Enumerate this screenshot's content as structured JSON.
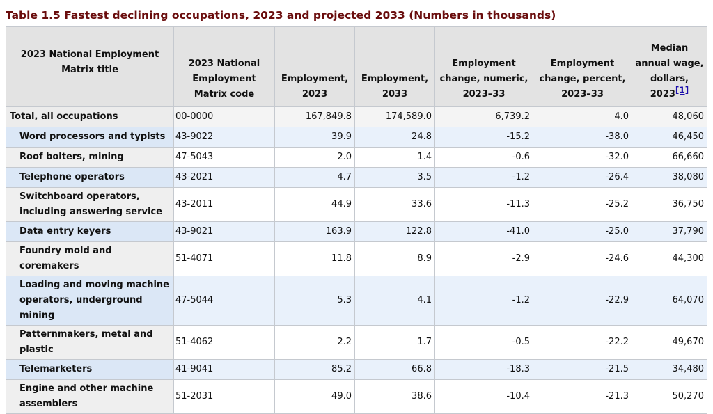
{
  "caption": "Table 1.5 Fastest declining occupations, 2023 and projected 2033 (Numbers in thousands)",
  "headers": {
    "title": "2023 National Employment Matrix title",
    "code": "2023 National Employment Matrix code",
    "emp2023": "Employment, 2023",
    "emp2033": "Employment, 2033",
    "change_numeric": "Employment change, numeric, 2023–33",
    "change_percent": "Employment change, percent, 2023–33",
    "wage": "Median annual wage, dollars, 2023",
    "wage_footnote": "[1]"
  },
  "rows": [
    {
      "title": "Total, all occupations",
      "code": "00-0000",
      "emp2023": "167,849.8",
      "emp2033": "174,589.0",
      "change_numeric": "6,739.2",
      "change_percent": "4.0",
      "wage": "48,060"
    },
    {
      "title": "Word processors and typists",
      "code": "43-9022",
      "emp2023": "39.9",
      "emp2033": "24.8",
      "change_numeric": "-15.2",
      "change_percent": "-38.0",
      "wage": "46,450"
    },
    {
      "title": "Roof bolters, mining",
      "code": "47-5043",
      "emp2023": "2.0",
      "emp2033": "1.4",
      "change_numeric": "-0.6",
      "change_percent": "-32.0",
      "wage": "66,660"
    },
    {
      "title": "Telephone operators",
      "code": "43-2021",
      "emp2023": "4.7",
      "emp2033": "3.5",
      "change_numeric": "-1.2",
      "change_percent": "-26.4",
      "wage": "38,080"
    },
    {
      "title": "Switchboard operators, including answering service",
      "code": "43-2011",
      "emp2023": "44.9",
      "emp2033": "33.6",
      "change_numeric": "-11.3",
      "change_percent": "-25.2",
      "wage": "36,750"
    },
    {
      "title": "Data entry keyers",
      "code": "43-9021",
      "emp2023": "163.9",
      "emp2033": "122.8",
      "change_numeric": "-41.0",
      "change_percent": "-25.0",
      "wage": "37,790"
    },
    {
      "title": "Foundry mold and coremakers",
      "code": "51-4071",
      "emp2023": "11.8",
      "emp2033": "8.9",
      "change_numeric": "-2.9",
      "change_percent": "-24.6",
      "wage": "44,300"
    },
    {
      "title": "Loading and moving machine operators, underground mining",
      "code": "47-5044",
      "emp2023": "5.3",
      "emp2033": "4.1",
      "change_numeric": "-1.2",
      "change_percent": "-22.9",
      "wage": "64,070"
    },
    {
      "title": "Patternmakers, metal and plastic",
      "code": "51-4062",
      "emp2023": "2.2",
      "emp2033": "1.7",
      "change_numeric": "-0.5",
      "change_percent": "-22.2",
      "wage": "49,670"
    },
    {
      "title": "Telemarketers",
      "code": "41-9041",
      "emp2023": "85.2",
      "emp2033": "66.8",
      "change_numeric": "-18.3",
      "change_percent": "-21.5",
      "wage": "34,480"
    },
    {
      "title": "Engine and other machine assemblers",
      "code": "51-2031",
      "emp2023": "49.0",
      "emp2033": "38.6",
      "change_numeric": "-10.4",
      "change_percent": "-21.3",
      "wage": "50,270"
    }
  ]
}
